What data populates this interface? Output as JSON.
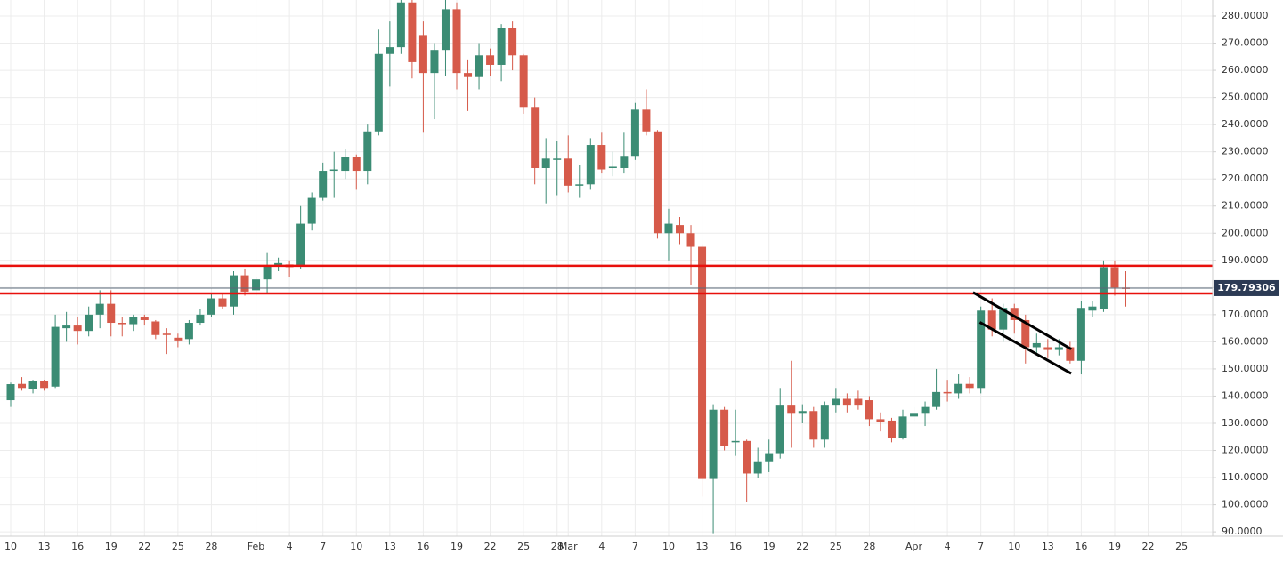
{
  "chart_data": {
    "type": "candlestick",
    "categories": [
      "10",
      null,
      null,
      "13",
      null,
      null,
      "16",
      null,
      null,
      "19",
      null,
      null,
      "22",
      null,
      null,
      "25",
      null,
      null,
      "28",
      null,
      null,
      null,
      "Feb",
      null,
      null,
      "4",
      null,
      null,
      "7",
      null,
      null,
      "10",
      null,
      null,
      "13",
      null,
      null,
      "16",
      null,
      null,
      "19",
      null,
      null,
      "22",
      null,
      null,
      "25",
      null,
      null,
      "28",
      "Mar",
      null,
      null,
      "4",
      null,
      null,
      "7",
      null,
      null,
      "10",
      null,
      null,
      "13",
      null,
      null,
      "16",
      null,
      null,
      "19",
      null,
      null,
      "22",
      null,
      null,
      "25",
      null,
      null,
      "28",
      null,
      null,
      null,
      "Apr",
      null,
      null,
      "4",
      null,
      null,
      "7",
      null,
      null,
      "10",
      null,
      null,
      "13",
      null,
      null,
      "16",
      null,
      null,
      "19",
      null,
      null,
      "22",
      null,
      null,
      "25"
    ],
    "open": [
      138.5,
      144.5,
      142.5,
      145.5,
      143.5,
      165,
      166,
      164,
      170,
      174,
      167,
      166.5,
      169,
      167.5,
      163,
      161.5,
      161,
      167,
      170,
      176,
      173,
      184.5,
      179,
      183,
      188,
      188.5,
      188,
      203.5,
      213,
      223,
      223,
      228,
      223,
      237.5,
      266,
      268.5,
      285,
      273,
      259,
      267.5,
      282.5,
      259,
      257.5,
      265.5,
      262,
      275.5,
      265.5,
      246.5,
      224,
      227,
      227.5,
      217.5,
      218,
      232.5,
      224,
      224,
      228.5,
      245.5,
      237.5,
      200,
      203,
      200,
      195,
      109.5,
      135,
      123,
      123.5,
      111.5,
      116,
      119,
      136.5,
      133.5,
      134.5,
      124,
      136.5,
      139,
      139,
      138.5,
      131.5,
      131,
      124.5,
      132.5,
      133.5,
      136,
      141.5,
      141,
      144.5,
      143,
      171.5,
      164.5,
      172.5,
      168,
      158,
      158,
      157,
      158,
      153,
      171.5,
      172,
      187.5,
      180,
      null,
      null,
      null,
      null,
      null
    ],
    "high": [
      145,
      147,
      146,
      146,
      170,
      171,
      169,
      173,
      179,
      179,
      169,
      170,
      170,
      168,
      165,
      163,
      168,
      172,
      178,
      178,
      186,
      187,
      184,
      193,
      191,
      190,
      210,
      215,
      226,
      230,
      231,
      229,
      240,
      275,
      278,
      287,
      288,
      278,
      270,
      288,
      285,
      264,
      270,
      268,
      277,
      278,
      266,
      250,
      235,
      234,
      236,
      225,
      235,
      237,
      230,
      237,
      248,
      253,
      238,
      209,
      206,
      203,
      196,
      137,
      136,
      135,
      124,
      121,
      124,
      143,
      153,
      137,
      136,
      138,
      143,
      141,
      142,
      140,
      134,
      132,
      135,
      136,
      138,
      150,
      146,
      148,
      147,
      173,
      176,
      174,
      174,
      170,
      163,
      161,
      161,
      160,
      175,
      175,
      190,
      190,
      186,
      null,
      null,
      null,
      null,
      null
    ],
    "low": [
      136,
      142,
      141,
      142,
      143,
      160,
      159,
      162,
      165,
      162,
      162,
      164,
      166,
      161,
      155.5,
      158,
      159,
      166,
      169,
      172,
      170,
      177,
      177,
      178,
      186,
      184,
      187,
      201,
      212,
      213,
      220,
      216,
      218,
      236,
      254,
      266,
      257,
      237,
      242,
      258,
      253,
      245,
      253,
      258,
      256,
      260,
      244,
      218,
      211,
      214,
      215,
      213,
      216,
      222,
      221,
      222,
      227,
      236,
      198,
      190,
      196,
      181,
      103,
      89.5,
      120,
      118,
      101,
      110,
      112,
      117,
      121,
      130,
      121,
      121,
      134,
      134,
      135,
      129,
      127,
      123,
      124,
      131,
      129,
      135,
      138,
      139,
      141,
      141,
      162,
      160,
      163,
      152,
      155,
      154,
      155,
      152,
      148,
      169,
      171,
      177,
      173,
      null,
      null,
      null,
      null,
      null
    ],
    "close": [
      144.4,
      143,
      145.5,
      143,
      165.5,
      166,
      164,
      170,
      174,
      167,
      166.5,
      169,
      168,
      162.5,
      162.5,
      160.5,
      167,
      170,
      176,
      173,
      184.5,
      178.5,
      183,
      188,
      189,
      187.5,
      203.5,
      213,
      223,
      223.5,
      228,
      223,
      237.5,
      266,
      268.5,
      285,
      263,
      259,
      267.5,
      282.5,
      259,
      257.5,
      265.5,
      262,
      275.5,
      265.5,
      246.5,
      224,
      227.5,
      227.5,
      217.5,
      218,
      232.5,
      223.5,
      224.5,
      228.5,
      245.5,
      237.5,
      200,
      203.5,
      200,
      195,
      109.5,
      135,
      121.5,
      123.5,
      111.5,
      116,
      119,
      136.5,
      133.5,
      134.5,
      124,
      136.5,
      139,
      136.5,
      136.5,
      131.5,
      130.5,
      124.5,
      132.5,
      133.5,
      136,
      141.5,
      141,
      144.5,
      143,
      171.5,
      164.5,
      172.5,
      168,
      158,
      159.5,
      157,
      158,
      153,
      172.5,
      173,
      187.5,
      180,
      179.8,
      null,
      null,
      null,
      null,
      null
    ],
    "up_color": "#3b8c74",
    "down_color": "#d65a4a",
    "ylim": [
      88.4,
      285.9
    ],
    "yticks": [
      {
        "value": 90,
        "label": "90.0000"
      },
      {
        "value": 100,
        "label": "100.0000"
      },
      {
        "value": 110,
        "label": "110.0000"
      },
      {
        "value": 120,
        "label": "120.0000"
      },
      {
        "value": 130,
        "label": "130.0000"
      },
      {
        "value": 140,
        "label": "140.0000"
      },
      {
        "value": 150,
        "label": "150.0000"
      },
      {
        "value": 160,
        "label": "160.0000"
      },
      {
        "value": 170,
        "label": "170.0000"
      },
      {
        "value": 180,
        "label": "180.0000"
      },
      {
        "value": 190,
        "label": "190.0000"
      },
      {
        "value": 200,
        "label": "200.0000"
      },
      {
        "value": 210,
        "label": "210.0000"
      },
      {
        "value": 220,
        "label": "220.0000"
      },
      {
        "value": 230,
        "label": "230.0000"
      },
      {
        "value": 240,
        "label": "240.0000"
      },
      {
        "value": 250,
        "label": "250.0000"
      },
      {
        "value": 260,
        "label": "260.0000"
      },
      {
        "value": 270,
        "label": "270.0000"
      },
      {
        "value": 280,
        "label": "280.0000"
      }
    ],
    "grid": true,
    "hlines": [
      188,
      177.8
    ],
    "hline_color": "#e8100c",
    "trendlines": [
      {
        "start": [
          86.3,
          178.2
        ],
        "end": [
          95.1,
          157.3
        ]
      },
      {
        "start": [
          86.9,
          167.2
        ],
        "end": [
          95.1,
          148.3
        ]
      }
    ],
    "trendline_color": "#000000",
    "last_price": 179.79306
  }
}
